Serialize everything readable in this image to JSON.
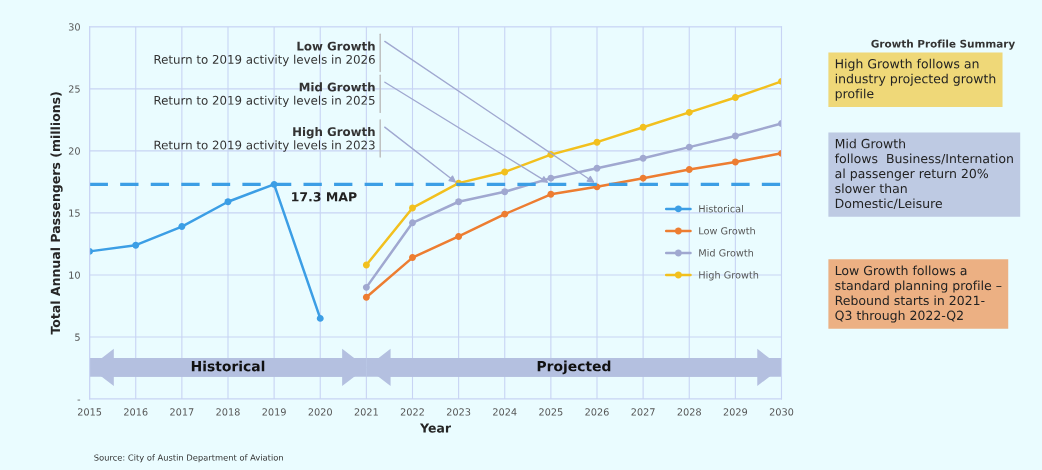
{
  "chart_data": {
    "type": "line",
    "xlabel": "Year",
    "ylabel": "Total Annual Passengers (millions)",
    "xlim": [
      2015,
      2030
    ],
    "xticks": [
      2015,
      2016,
      2017,
      2018,
      2019,
      2020,
      2021,
      2022,
      2023,
      2024,
      2025,
      2026,
      2027,
      2028,
      2029,
      2030
    ],
    "ylim": [
      0,
      30
    ],
    "yticks": [
      {
        "value": 0,
        "label": "-"
      },
      5,
      10,
      15,
      20,
      25,
      30
    ],
    "grid": true,
    "legend": "right",
    "marker": "circle",
    "line_style": "solid",
    "series": [
      {
        "name": "Historical",
        "color": "#3c9ee5",
        "x": [
          2015,
          2016,
          2017,
          2018,
          2019,
          2020
        ],
        "values": [
          11.9,
          12.4,
          13.9,
          15.9,
          17.3,
          6.5
        ]
      },
      {
        "name": "Low Growth",
        "color": "#ed7d31",
        "x": [
          2021,
          2022,
          2023,
          2024,
          2025,
          2026,
          2027,
          2028,
          2029,
          2030
        ],
        "values": [
          8.2,
          11.4,
          13.1,
          14.9,
          16.5,
          17.1,
          17.8,
          18.5,
          19.1,
          19.8
        ]
      },
      {
        "name": "Mid Growth",
        "color": "#a0a8d0",
        "x": [
          2021,
          2022,
          2023,
          2024,
          2025,
          2026,
          2027,
          2028,
          2029,
          2030
        ],
        "values": [
          9.0,
          14.2,
          15.9,
          16.7,
          17.8,
          18.6,
          19.4,
          20.3,
          21.2,
          22.2
        ]
      },
      {
        "name": "High Growth",
        "color": "#f2c01e",
        "x": [
          2021,
          2022,
          2023,
          2024,
          2025,
          2026,
          2027,
          2028,
          2029,
          2030
        ],
        "values": [
          10.8,
          15.4,
          17.4,
          18.3,
          19.7,
          20.7,
          21.9,
          23.1,
          24.3,
          25.6
        ]
      }
    ],
    "ref_lines": [
      {
        "axis": "y",
        "value": 17.3,
        "label": "17.3 MAP",
        "color": "#3c9ee5",
        "line_style": "dashed"
      }
    ],
    "annotations": [
      "Historical",
      "Projected",
      {
        "text": "Low Growth\nReturn to 2019 activity levels in 2026",
        "x": 2026,
        "y": 17.3
      },
      {
        "text": "Mid Growth\nReturn to 2019 activity levels in 2025",
        "x": 2025,
        "y": 17.3
      },
      {
        "text": "High Growth\nReturn to 2019 activity levels in 2023",
        "x": 2023,
        "y": 17.3
      },
      "Growth Profile Summary",
      "High Growth follows an\nindustry projected growth\nprofile",
      "Mid Growth\nfollows  Business/Internation\nal passenger return 20%\nslower than\nDomestic/Leisure",
      "Low Growth follows a\nstandard planning profile –\nRebound starts in 2021-\nQ3 through 2022-Q2",
      "Source: City of Austin Department of Aviation"
    ]
  }
}
